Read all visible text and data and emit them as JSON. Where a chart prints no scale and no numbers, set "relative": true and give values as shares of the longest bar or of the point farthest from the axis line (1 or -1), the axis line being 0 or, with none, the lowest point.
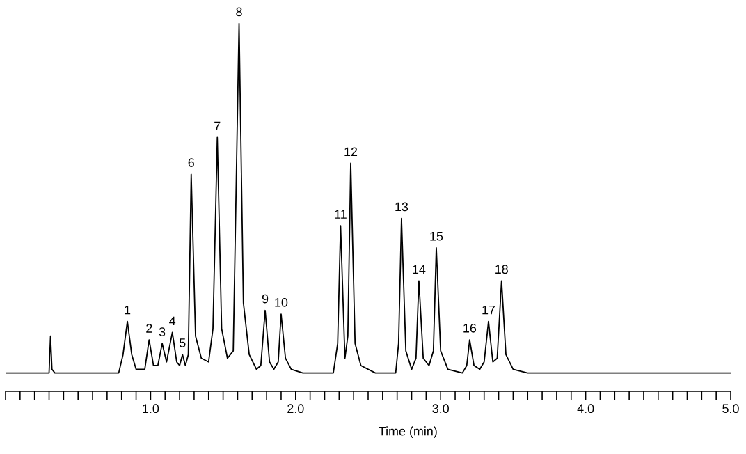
{
  "chart_data": {
    "type": "line",
    "relative": true,
    "xlabel": "Time (min)",
    "tick_labels": "x",
    "xlim": [
      0,
      5
    ],
    "xticks": [
      {
        "value": 0,
        "label": null
      },
      {
        "value": 0.1,
        "label": null
      },
      {
        "value": 0.2,
        "label": null
      },
      {
        "value": 0.3,
        "label": null
      },
      {
        "value": 0.4,
        "label": null
      },
      {
        "value": 0.5,
        "label": null
      },
      {
        "value": 0.6,
        "label": null
      },
      {
        "value": 0.7,
        "label": null
      },
      {
        "value": 0.8,
        "label": null
      },
      {
        "value": 0.9,
        "label": null
      },
      {
        "value": 1.0,
        "label": "1.0"
      },
      {
        "value": 1.1,
        "label": null
      },
      {
        "value": 1.2,
        "label": null
      },
      {
        "value": 1.3,
        "label": null
      },
      {
        "value": 1.4,
        "label": null
      },
      {
        "value": 1.5,
        "label": null
      },
      {
        "value": 1.6,
        "label": null
      },
      {
        "value": 1.7,
        "label": null
      },
      {
        "value": 1.8,
        "label": null
      },
      {
        "value": 1.9,
        "label": null
      },
      {
        "value": 2.0,
        "label": "2.0"
      },
      {
        "value": 2.1,
        "label": null
      },
      {
        "value": 2.2,
        "label": null
      },
      {
        "value": 2.3,
        "label": null
      },
      {
        "value": 2.4,
        "label": null
      },
      {
        "value": 2.5,
        "label": null
      },
      {
        "value": 2.6,
        "label": null
      },
      {
        "value": 2.7,
        "label": null
      },
      {
        "value": 2.8,
        "label": null
      },
      {
        "value": 2.9,
        "label": null
      },
      {
        "value": 3.0,
        "label": "3.0"
      },
      {
        "value": 3.1,
        "label": null
      },
      {
        "value": 3.2,
        "label": null
      },
      {
        "value": 3.3,
        "label": null
      },
      {
        "value": 3.4,
        "label": null
      },
      {
        "value": 3.5,
        "label": null
      },
      {
        "value": 3.6,
        "label": null
      },
      {
        "value": 3.7,
        "label": null
      },
      {
        "value": 3.8,
        "label": null
      },
      {
        "value": 3.9,
        "label": null
      },
      {
        "value": 4.0,
        "label": "4.0"
      },
      {
        "value": 4.1,
        "label": null
      },
      {
        "value": 4.2,
        "label": null
      },
      {
        "value": 4.3,
        "label": null
      },
      {
        "value": 4.4,
        "label": null
      },
      {
        "value": 4.5,
        "label": null
      },
      {
        "value": 4.6,
        "label": null
      },
      {
        "value": 4.7,
        "label": null
      },
      {
        "value": 4.8,
        "label": null
      },
      {
        "value": 4.9,
        "label": null
      },
      {
        "value": 5.0,
        "label": "5.0"
      }
    ],
    "series": [
      {
        "color": "#000000",
        "x": [
          0,
          0.3,
          0.31,
          0.32,
          0.34,
          0.78,
          0.81,
          0.84,
          0.87,
          0.9,
          0.96,
          0.99,
          1.02,
          1.05,
          1.08,
          1.11,
          1.15,
          1.18,
          1.2,
          1.22,
          1.24,
          1.26,
          1.28,
          1.31,
          1.35,
          1.4,
          1.43,
          1.46,
          1.49,
          1.53,
          1.57,
          1.61,
          1.64,
          1.68,
          1.73,
          1.76,
          1.79,
          1.82,
          1.85,
          1.88,
          1.9,
          1.93,
          1.97,
          2.05,
          2.26,
          2.29,
          2.31,
          2.34,
          2.36,
          2.38,
          2.41,
          2.45,
          2.55,
          2.69,
          2.71,
          2.73,
          2.76,
          2.8,
          2.83,
          2.85,
          2.88,
          2.92,
          2.95,
          2.97,
          3.0,
          3.05,
          3.15,
          3.18,
          3.2,
          3.23,
          3.27,
          3.3,
          3.33,
          3.36,
          3.39,
          3.42,
          3.45,
          3.5,
          3.6,
          5.0
        ],
        "values": [
          0.05,
          0.05,
          0.15,
          0.06,
          0.05,
          0.05,
          0.1,
          0.19,
          0.1,
          0.06,
          0.06,
          0.14,
          0.07,
          0.07,
          0.13,
          0.08,
          0.16,
          0.08,
          0.07,
          0.1,
          0.07,
          0.1,
          0.59,
          0.15,
          0.09,
          0.08,
          0.17,
          0.69,
          0.17,
          0.09,
          0.11,
          1.0,
          0.24,
          0.1,
          0.06,
          0.07,
          0.22,
          0.08,
          0.06,
          0.08,
          0.21,
          0.09,
          0.06,
          0.05,
          0.05,
          0.13,
          0.45,
          0.09,
          0.15,
          0.62,
          0.13,
          0.07,
          0.05,
          0.05,
          0.13,
          0.47,
          0.11,
          0.06,
          0.09,
          0.3,
          0.09,
          0.07,
          0.11,
          0.39,
          0.11,
          0.06,
          0.05,
          0.07,
          0.14,
          0.07,
          0.06,
          0.08,
          0.19,
          0.08,
          0.09,
          0.3,
          0.1,
          0.06,
          0.05,
          0.05
        ]
      }
    ],
    "annotations": [
      {
        "text": "1",
        "x": 0.84,
        "y": 0.19
      },
      {
        "text": "2",
        "x": 0.99,
        "y": 0.14
      },
      {
        "text": "3",
        "x": 1.08,
        "y": 0.13
      },
      {
        "text": "4",
        "x": 1.15,
        "y": 0.16
      },
      {
        "text": "5",
        "x": 1.22,
        "y": 0.1
      },
      {
        "text": "6",
        "x": 1.28,
        "y": 0.59
      },
      {
        "text": "7",
        "x": 1.46,
        "y": 0.69
      },
      {
        "text": "8",
        "x": 1.61,
        "y": 1.0
      },
      {
        "text": "9",
        "x": 1.79,
        "y": 0.22
      },
      {
        "text": "10",
        "x": 1.9,
        "y": 0.21
      },
      {
        "text": "11",
        "x": 2.31,
        "y": 0.45
      },
      {
        "text": "12",
        "x": 2.38,
        "y": 0.62
      },
      {
        "text": "13",
        "x": 2.73,
        "y": 0.47
      },
      {
        "text": "14",
        "x": 2.85,
        "y": 0.3
      },
      {
        "text": "15",
        "x": 2.97,
        "y": 0.39
      },
      {
        "text": "16",
        "x": 3.2,
        "y": 0.14
      },
      {
        "text": "17",
        "x": 3.33,
        "y": 0.19
      },
      {
        "text": "18",
        "x": 3.42,
        "y": 0.3
      }
    ]
  }
}
